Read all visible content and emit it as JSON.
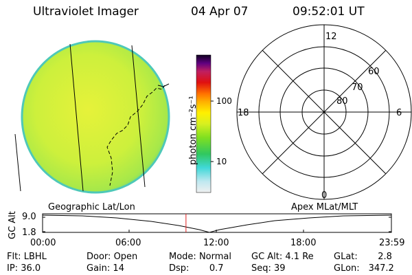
{
  "header": {
    "title": "Ultraviolet Imager",
    "date": "04 Apr 07",
    "time": "09:52:01 UT"
  },
  "colorbar": {
    "label": "photon cm⁻²s⁻¹",
    "ticks": [
      "100",
      "10"
    ]
  },
  "polar_plot": {
    "hours": [
      "12",
      "18",
      "6",
      "0"
    ],
    "latitudes": [
      "60",
      "70",
      "80"
    ]
  },
  "timeline": {
    "ylabel": "GC Alt",
    "yticks": [
      "9.0",
      "1.8"
    ],
    "left_label": "Geographic Lat/Lon",
    "right_label": "Apex MLat/MLT",
    "xticks": [
      "00:00",
      "06:00",
      "12:00",
      "18:00",
      "23:59"
    ],
    "marker_time_hours": 9.867
  },
  "info": {
    "row1": [
      {
        "label": "Flt:",
        "value": "LBHL"
      },
      {
        "label": "Door:",
        "value": "Open"
      },
      {
        "label": "Mode:",
        "value": "Normal"
      },
      {
        "label": "GC Alt:",
        "value": "4.1 Re"
      },
      {
        "label": "GLat:",
        "value": "2.8"
      }
    ],
    "row2": [
      {
        "label": "IP:",
        "value": "36.0"
      },
      {
        "label": "Gain:",
        "value": "14"
      },
      {
        "label": "Dsp:",
        "value": "0.7"
      },
      {
        "label": "Seq:",
        "value": "39"
      },
      {
        "label": "GLon:",
        "value": "347.2"
      }
    ]
  },
  "colors": {
    "disk_fill": "#c8f03c",
    "disk_edge": "#4ec8b8",
    "marker": "#e02020"
  }
}
